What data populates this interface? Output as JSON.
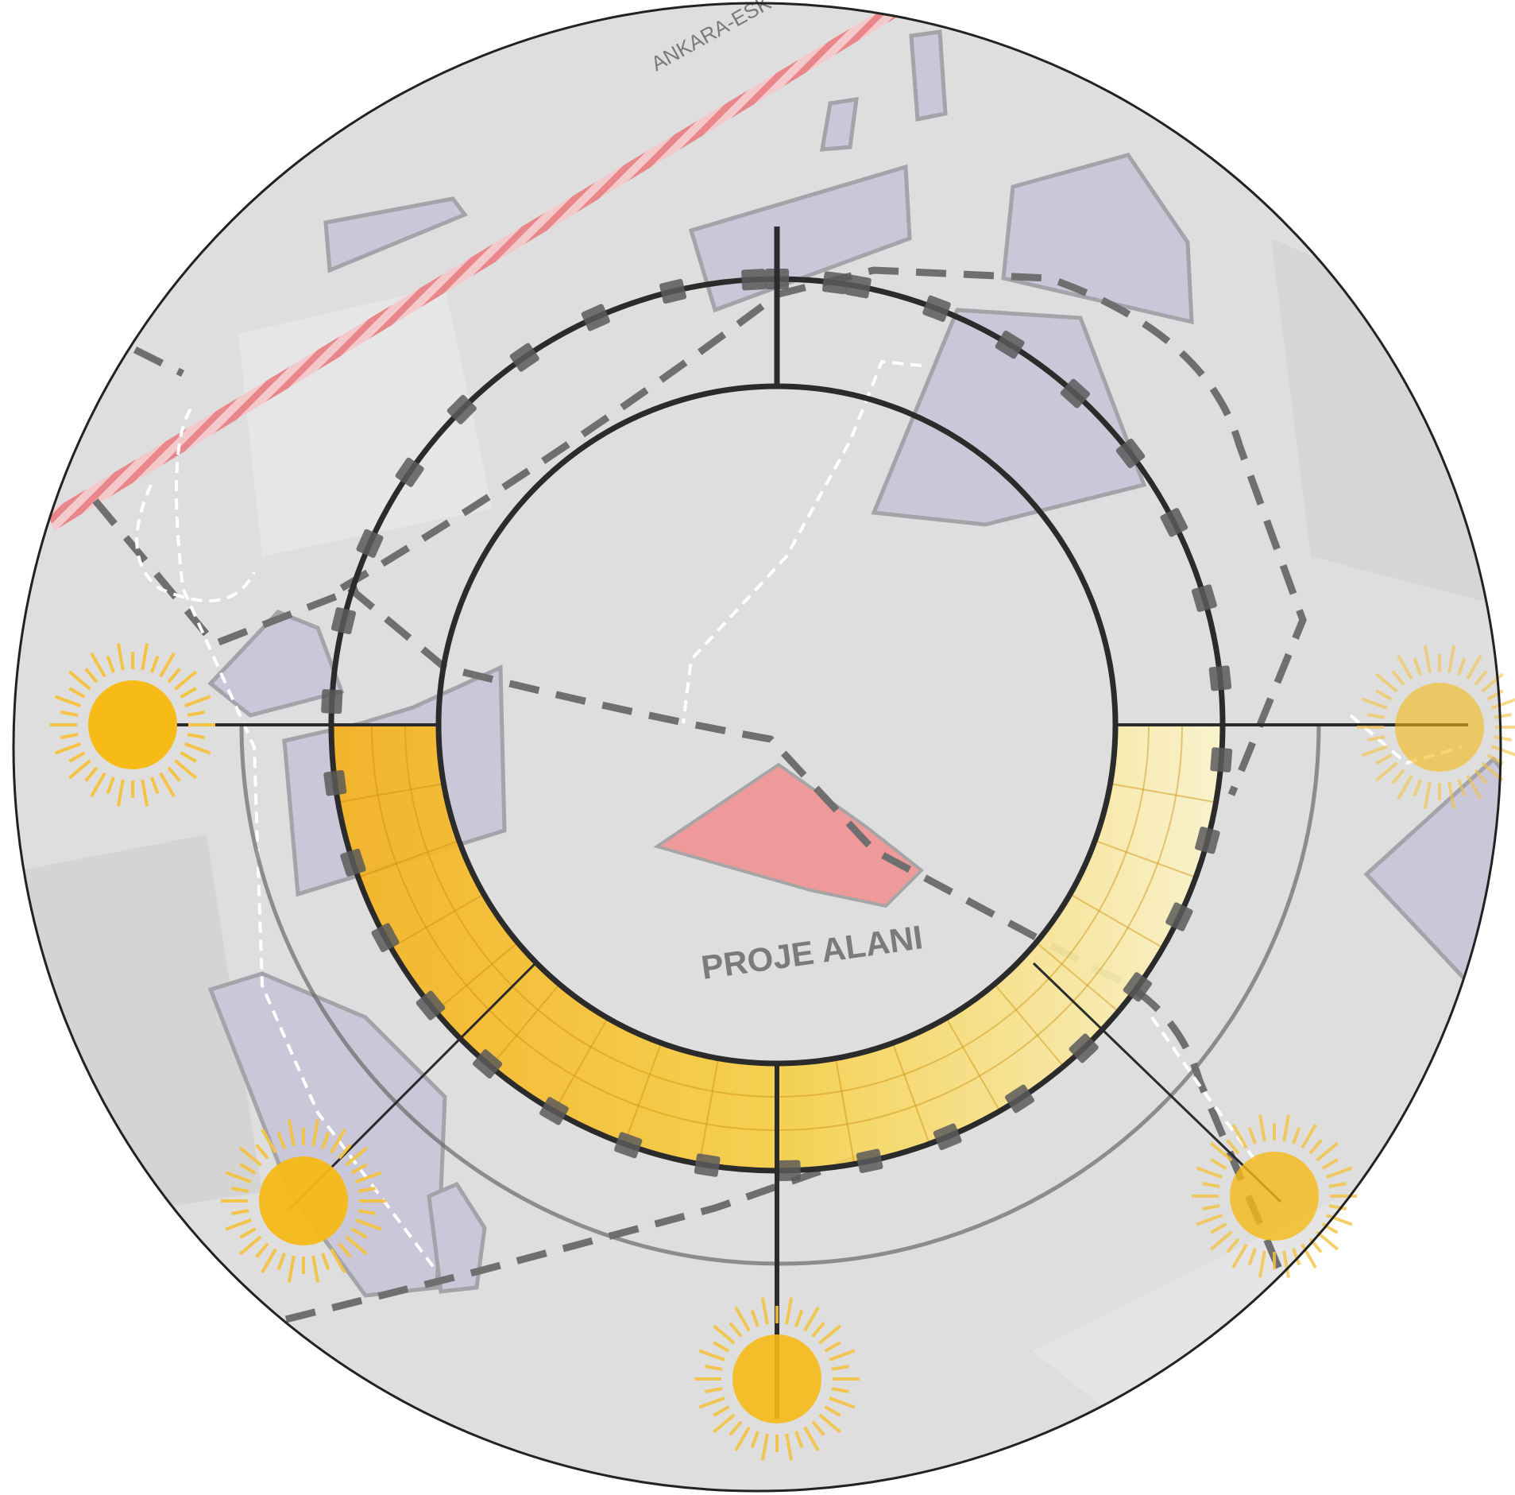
{
  "diagram": {
    "road_label": "ANKARA-ESK",
    "site_label": "PROJE ALANI"
  },
  "colors": {
    "map_background": "#dcdcdc",
    "building_fill": "#c9c7d8",
    "building_stroke": "#9f9fa6",
    "road_hatch": "#e8868a",
    "site_fill": "#ee9a9a",
    "sun": "#f6bb16",
    "sun_rays": "#f4c343",
    "ring": "#2b2b2b",
    "dash": "#707070"
  },
  "icons": {
    "sun": "sun-icon",
    "marker": "square-marker"
  },
  "sun_positions": [
    "west",
    "south-west",
    "south",
    "south-east",
    "east"
  ]
}
